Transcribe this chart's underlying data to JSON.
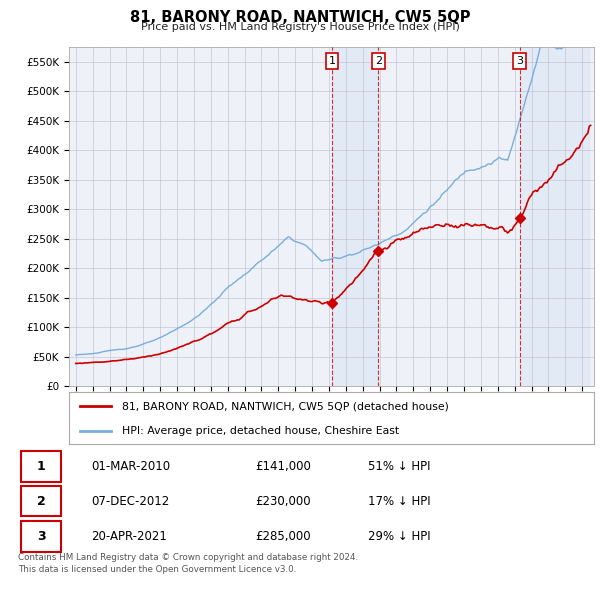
{
  "title": "81, BARONY ROAD, NANTWICH, CW5 5QP",
  "subtitle": "Price paid vs. HM Land Registry's House Price Index (HPI)",
  "hpi_color": "#7aaddc",
  "price_color": "#cc0000",
  "background_color": "#ffffff",
  "plot_bg_color": "#eef2f8",
  "shade_color": "#ccddf0",
  "grid_color": "#bbbbcc",
  "ylim": [
    0,
    575000
  ],
  "ytick_vals": [
    0,
    50000,
    100000,
    150000,
    200000,
    250000,
    300000,
    350000,
    400000,
    450000,
    500000,
    550000
  ],
  "ytick_labels": [
    "£0",
    "£50K",
    "£100K",
    "£150K",
    "£200K",
    "£250K",
    "£300K",
    "£350K",
    "£400K",
    "£450K",
    "£500K",
    "£550K"
  ],
  "sale_date_nums": [
    2010.17,
    2012.93,
    2021.3
  ],
  "sale_prices_val": [
    141000,
    230000,
    285000
  ],
  "sale_labels": [
    "1",
    "2",
    "3"
  ],
  "sale_dates": [
    "01-MAR-2010",
    "07-DEC-2012",
    "20-APR-2021"
  ],
  "sale_prices": [
    "£141,000",
    "£230,000",
    "£285,000"
  ],
  "sale_hpi_diff": [
    "51% ↓ HPI",
    "17% ↓ HPI",
    "29% ↓ HPI"
  ],
  "legend_property": "81, BARONY ROAD, NANTWICH, CW5 5QP (detached house)",
  "legend_hpi": "HPI: Average price, detached house, Cheshire East",
  "footnote1": "Contains HM Land Registry data © Crown copyright and database right 2024.",
  "footnote2": "This data is licensed under the Open Government Licence v3.0."
}
